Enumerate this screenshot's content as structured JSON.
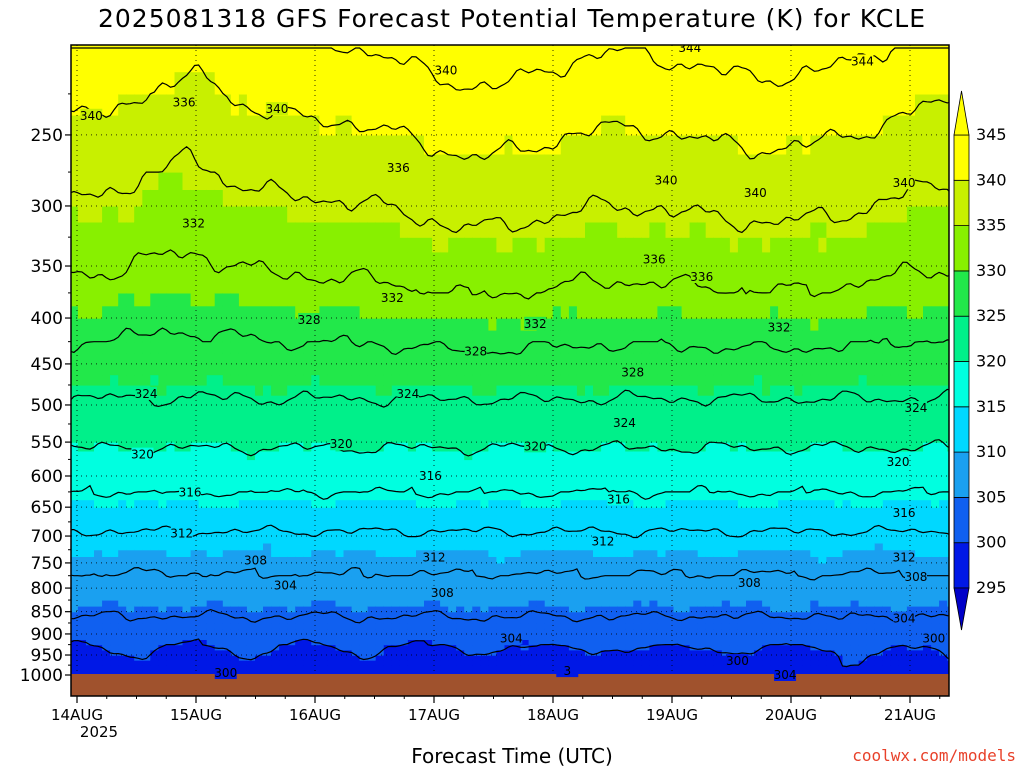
{
  "title": "2025081318 GFS Forecast Potential Temperature (K) for KCLE",
  "xlabel": "Forecast Time (UTC)",
  "credit": "coolwx.com/models",
  "colors": {
    "ground": "#a0522d",
    "contour": "#000000",
    "bands": [
      "#0000c8",
      "#0018e6",
      "#1060f0",
      "#1aa0f0",
      "#00d8ff",
      "#00ffe0",
      "#00f08a",
      "#22e84a",
      "#88f000",
      "#c8f000",
      "#ffff00"
    ]
  },
  "chart_data": {
    "type": "heatmap",
    "title": "2025081318 GFS Forecast Potential Temperature (K) for KCLE",
    "xlabel": "Forecast Time (UTC)",
    "ylabel": "",
    "x_ticks": [
      "14AUG",
      "15AUG",
      "16AUG",
      "17AUG",
      "18AUG",
      "19AUG",
      "20AUG",
      "21AUG"
    ],
    "x_year": "2025",
    "y_ticks": [
      250,
      300,
      350,
      400,
      450,
      500,
      550,
      600,
      650,
      700,
      750,
      800,
      850,
      900,
      950,
      1000
    ],
    "y_scale": "log-pressure (inverted)",
    "ylim": [
      1000,
      200
    ],
    "colorbar_levels": [
      295,
      300,
      305,
      310,
      315,
      320,
      325,
      330,
      335,
      340,
      345
    ],
    "colorbar_extend": "both",
    "contour_interval": 4,
    "contour_labels": [
      {
        "value": "340",
        "time": 0.12,
        "p": 238
      },
      {
        "value": "336",
        "time": 0.9,
        "p": 230
      },
      {
        "value": "340",
        "time": 1.68,
        "p": 234
      },
      {
        "value": "340",
        "time": 3.1,
        "p": 212
      },
      {
        "value": "344",
        "time": 5.15,
        "p": 200
      },
      {
        "value": "344",
        "time": 6.6,
        "p": 207
      },
      {
        "value": "340",
        "time": 7.95,
        "p": 216
      },
      {
        "value": "336",
        "time": 2.7,
        "p": 272
      },
      {
        "value": "340",
        "time": 4.95,
        "p": 281
      },
      {
        "value": "340",
        "time": 5.7,
        "p": 290
      },
      {
        "value": "340",
        "time": 6.95,
        "p": 283
      },
      {
        "value": "336",
        "time": 7.85,
        "p": 303
      },
      {
        "value": "332",
        "time": 0.98,
        "p": 314
      },
      {
        "value": "336",
        "time": 4.85,
        "p": 344
      },
      {
        "value": "336",
        "time": 5.25,
        "p": 360
      },
      {
        "value": "332",
        "time": 7.95,
        "p": 352
      },
      {
        "value": "332",
        "time": 2.65,
        "p": 380
      },
      {
        "value": "328",
        "time": 1.95,
        "p": 402
      },
      {
        "value": "332",
        "time": 3.85,
        "p": 406
      },
      {
        "value": "332",
        "time": 5.9,
        "p": 410
      },
      {
        "value": "328",
        "time": 3.35,
        "p": 436
      },
      {
        "value": "328",
        "time": 4.67,
        "p": 460
      },
      {
        "value": "328",
        "time": 7.65,
        "p": 443
      },
      {
        "value": "324",
        "time": 0.58,
        "p": 486
      },
      {
        "value": "324",
        "time": 2.78,
        "p": 486
      },
      {
        "value": "324",
        "time": 4.6,
        "p": 524
      },
      {
        "value": "324",
        "time": 7.05,
        "p": 504
      },
      {
        "value": "320",
        "time": 0.55,
        "p": 568
      },
      {
        "value": "320",
        "time": 2.22,
        "p": 553
      },
      {
        "value": "320",
        "time": 3.85,
        "p": 556
      },
      {
        "value": "320",
        "time": 6.9,
        "p": 579
      },
      {
        "value": "316",
        "time": 0.95,
        "p": 626
      },
      {
        "value": "316",
        "time": 2.97,
        "p": 600
      },
      {
        "value": "316",
        "time": 4.55,
        "p": 637
      },
      {
        "value": "316",
        "time": 6.95,
        "p": 660
      },
      {
        "value": "312",
        "time": 0.88,
        "p": 695
      },
      {
        "value": "312",
        "time": 3.0,
        "p": 740
      },
      {
        "value": "312",
        "time": 4.42,
        "p": 710
      },
      {
        "value": "312",
        "time": 6.95,
        "p": 740
      },
      {
        "value": "308",
        "time": 1.5,
        "p": 745
      },
      {
        "value": "308",
        "time": 3.07,
        "p": 810
      },
      {
        "value": "308",
        "time": 5.65,
        "p": 790
      },
      {
        "value": "308",
        "time": 7.05,
        "p": 778
      },
      {
        "value": "304",
        "time": 1.75,
        "p": 795
      },
      {
        "value": "304",
        "time": 3.65,
        "p": 910
      },
      {
        "value": "304",
        "time": 6.95,
        "p": 865
      },
      {
        "value": "304",
        "time": 5.95,
        "p": 1000
      },
      {
        "value": "300",
        "time": 1.25,
        "p": 995
      },
      {
        "value": "300",
        "time": 5.55,
        "p": 965
      },
      {
        "value": "300",
        "time": 7.2,
        "p": 910
      },
      {
        "value": "3",
        "time": 4.12,
        "p": 990
      }
    ]
  }
}
